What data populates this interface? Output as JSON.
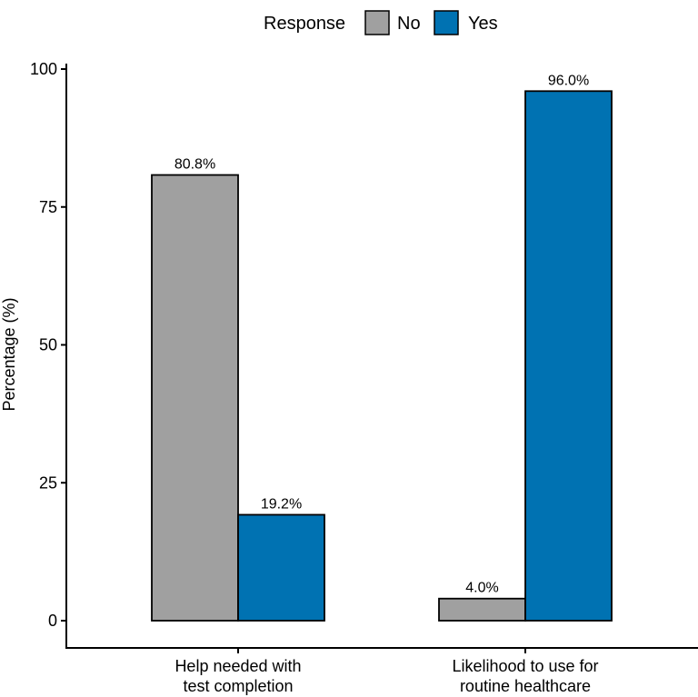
{
  "chart_data": {
    "type": "bar",
    "ylabel": "Percentage (%)",
    "ylim": [
      0,
      100
    ],
    "yticks": [
      0,
      25,
      50,
      75,
      100
    ],
    "legend": {
      "title": "Response",
      "placement": "top",
      "entries": [
        {
          "name": "No",
          "color": "#a0a0a0"
        },
        {
          "name": "Yes",
          "color": "#0072b2"
        }
      ]
    },
    "categories": [
      [
        "Help needed with",
        "test completion"
      ],
      [
        "Likelihood to use for",
        "routine healthcare"
      ]
    ],
    "series": [
      {
        "name": "No",
        "color": "#a0a0a0",
        "values": [
          80.8,
          4.0
        ],
        "labels": [
          "80.8%",
          "4.0%"
        ]
      },
      {
        "name": "Yes",
        "color": "#0072b2",
        "values": [
          19.2,
          96.0
        ],
        "labels": [
          "19.2%",
          "96.0%"
        ]
      }
    ],
    "grid": false
  }
}
